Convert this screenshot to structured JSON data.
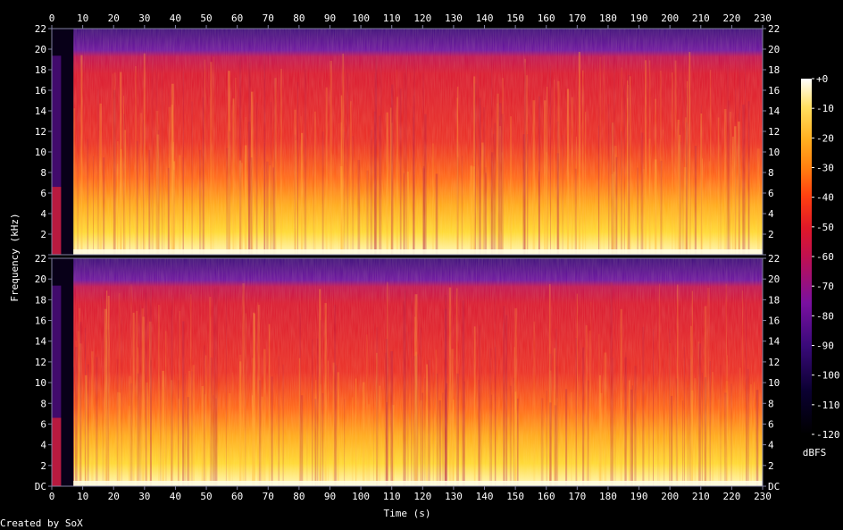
{
  "chart_data": {
    "type": "heatmap",
    "xlabel": "Time (s)",
    "ylabel": "Frequency (kHz)",
    "xlim": [
      0,
      230
    ],
    "x_ticks": [
      0,
      10,
      20,
      30,
      40,
      50,
      60,
      70,
      80,
      90,
      100,
      110,
      120,
      130,
      140,
      150,
      160,
      170,
      180,
      190,
      200,
      210,
      220,
      230
    ],
    "ylim": [
      0,
      22
    ],
    "y_ticks": [
      "DC",
      "2",
      "4",
      "6",
      "8",
      "10",
      "12",
      "14",
      "16",
      "18",
      "20",
      "22"
    ],
    "channels": 2,
    "colorbar": {
      "label": "dBFS",
      "ticks": [
        "+0",
        "-10",
        "-20",
        "-30",
        "-40",
        "-50",
        "-60",
        "-70",
        "-80",
        "-90",
        "-100",
        "-110",
        "-120"
      ],
      "range": [
        -120,
        0
      ]
    },
    "footer": "Created by SoX",
    "colors": {
      "background": "#000000",
      "axis": "#8080a0",
      "text": "#ffffff",
      "silence": "#050010"
    }
  }
}
